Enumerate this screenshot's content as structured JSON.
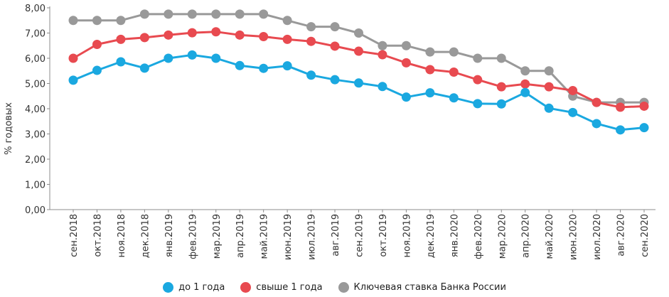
{
  "chart_data": {
    "type": "line",
    "ylabel": "% годовых",
    "xlabel": "",
    "ylim": [
      0,
      8
    ],
    "yticks": [
      "0,00",
      "1,00",
      "2,00",
      "3,00",
      "4,00",
      "5,00",
      "6,00",
      "7,00",
      "8,00"
    ],
    "grid": false,
    "legend_position": "bottom",
    "categories": [
      "сен.2018",
      "окт.2018",
      "ноя.2018",
      "дек.2018",
      "янв.2019",
      "фев.2019",
      "мар.2019",
      "апр.2019",
      "май.2019",
      "июн.2019",
      "июл.2019",
      "авг.2019",
      "сен.2019",
      "окт.2019",
      "ноя.2019",
      "дек.2019",
      "янв.2020",
      "фев.2020",
      "мар.2020",
      "апр.2020",
      "май.2020",
      "июн.2020",
      "июл.2020",
      "авг.2020",
      "сен.2020"
    ],
    "series": [
      {
        "name": "до 1 года",
        "color": "#1aa8e0",
        "values": [
          5.13,
          5.52,
          5.86,
          5.61,
          6.0,
          6.13,
          6.0,
          5.71,
          5.6,
          5.7,
          5.33,
          5.15,
          5.02,
          4.88,
          4.46,
          4.63,
          4.43,
          4.2,
          4.19,
          4.64,
          4.02,
          3.85,
          3.41,
          3.16,
          3.25
        ]
      },
      {
        "name": "свыше 1 года",
        "color": "#e84a50",
        "values": [
          6.0,
          6.55,
          6.75,
          6.82,
          6.92,
          7.01,
          7.05,
          6.92,
          6.86,
          6.75,
          6.67,
          6.48,
          6.28,
          6.14,
          5.82,
          5.55,
          5.45,
          5.15,
          4.87,
          4.98,
          4.87,
          4.72,
          4.25,
          4.06,
          4.1
        ]
      },
      {
        "name": "Ключевая ставка Банка России",
        "color": "#999999",
        "values": [
          7.5,
          7.5,
          7.5,
          7.75,
          7.75,
          7.75,
          7.75,
          7.75,
          7.75,
          7.5,
          7.25,
          7.25,
          7.0,
          6.5,
          6.5,
          6.25,
          6.25,
          6.0,
          6.0,
          5.5,
          5.5,
          4.5,
          4.25,
          4.25,
          4.25
        ]
      }
    ]
  }
}
